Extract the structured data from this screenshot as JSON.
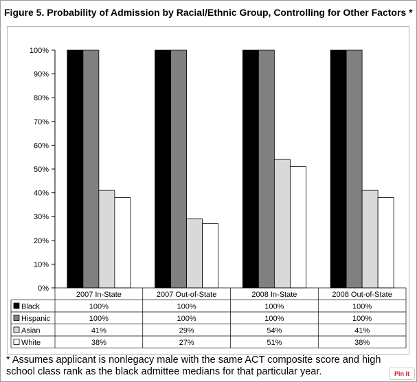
{
  "header": {
    "title": "Figure 5. Probability of Admission by Racial/Ethnic Group, Controlling for Other Factors *"
  },
  "footnote": {
    "text": "* Assumes applicant is nonlegacy male with the same ACT composite score and high school class rank as the black admittee medians for that particular year."
  },
  "pin_button": {
    "label": "Pin it"
  },
  "chart_data": {
    "type": "bar",
    "title": "Figure 5. Probability of Admission by Racial/Ethnic Group, Controlling for Other Factors *",
    "categories": [
      "2007 In-State",
      "2007 Out-of-State",
      "2008 In-State",
      "2008 Out-of-State"
    ],
    "series": [
      {
        "name": "Black",
        "values": [
          100,
          100,
          100,
          100
        ],
        "labels": [
          "100%",
          "100%",
          "100%",
          "100%"
        ],
        "color": "#000000"
      },
      {
        "name": "Hispanic",
        "values": [
          100,
          100,
          100,
          100
        ],
        "labels": [
          "100%",
          "100%",
          "100%",
          "100%"
        ],
        "color": "#808080"
      },
      {
        "name": "Asian",
        "values": [
          41,
          29,
          54,
          41
        ],
        "labels": [
          "41%",
          "29%",
          "54%",
          "41%"
        ],
        "color": "#d9d9d9"
      },
      {
        "name": "White",
        "values": [
          38,
          27,
          51,
          38
        ],
        "labels": [
          "38%",
          "27%",
          "51%",
          "38%"
        ],
        "color": "#ffffff"
      }
    ],
    "y_ticks": [
      "0%",
      "10%",
      "20%",
      "30%",
      "40%",
      "50%",
      "60%",
      "70%",
      "80%",
      "90%",
      "100%"
    ],
    "ylim": [
      0,
      100
    ],
    "xlabel": "",
    "ylabel": "",
    "grid": false,
    "legend": "data-table"
  }
}
